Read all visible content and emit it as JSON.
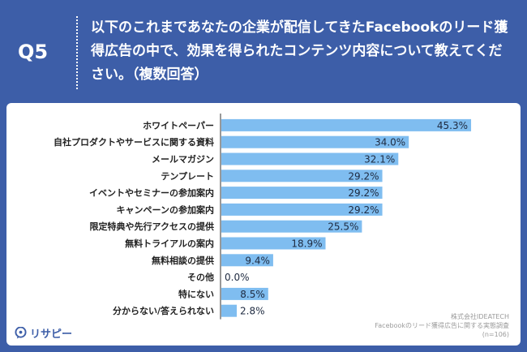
{
  "header": {
    "q_label": "Q5",
    "question": "以下のこれまであなたの企業が配信してきたFacebookのリード獲得広告の中で、効果を得られたコンテンツ内容について教えてください。（複数回答）"
  },
  "footer": {
    "company": "株式会社IDEATECH",
    "survey": "Facebookのリード獲得広告に関する実態調査",
    "n": "(n=106)",
    "logo_text": "リサピー"
  },
  "colors": {
    "bar": "#7fbdf0",
    "header_bg": "#3d5ea8",
    "axis": "#333333"
  },
  "chart_data": {
    "type": "bar",
    "orientation": "horizontal",
    "title": "",
    "xlabel": "",
    "ylabel": "",
    "xlim": [
      0,
      50
    ],
    "categories": [
      "ホワイトペーパー",
      "自社プロダクトやサービスに関する資料",
      "メールマガジン",
      "テンプレート",
      "イベントやセミナーの参加案内",
      "キャンペーンの参加案内",
      "限定特典や先行アクセスの提供",
      "無料トライアルの案内",
      "無料相談の提供",
      "その他",
      "特にない",
      "分からない/答えられない"
    ],
    "values": [
      45.3,
      34.0,
      32.1,
      29.2,
      29.2,
      29.2,
      25.5,
      18.9,
      9.4,
      0.0,
      8.5,
      2.8
    ],
    "value_labels": [
      "45.3%",
      "34.0%",
      "32.1%",
      "29.2%",
      "29.2%",
      "29.2%",
      "25.5%",
      "18.9%",
      "9.4%",
      "0.0%",
      "8.5%",
      "2.8%"
    ]
  }
}
